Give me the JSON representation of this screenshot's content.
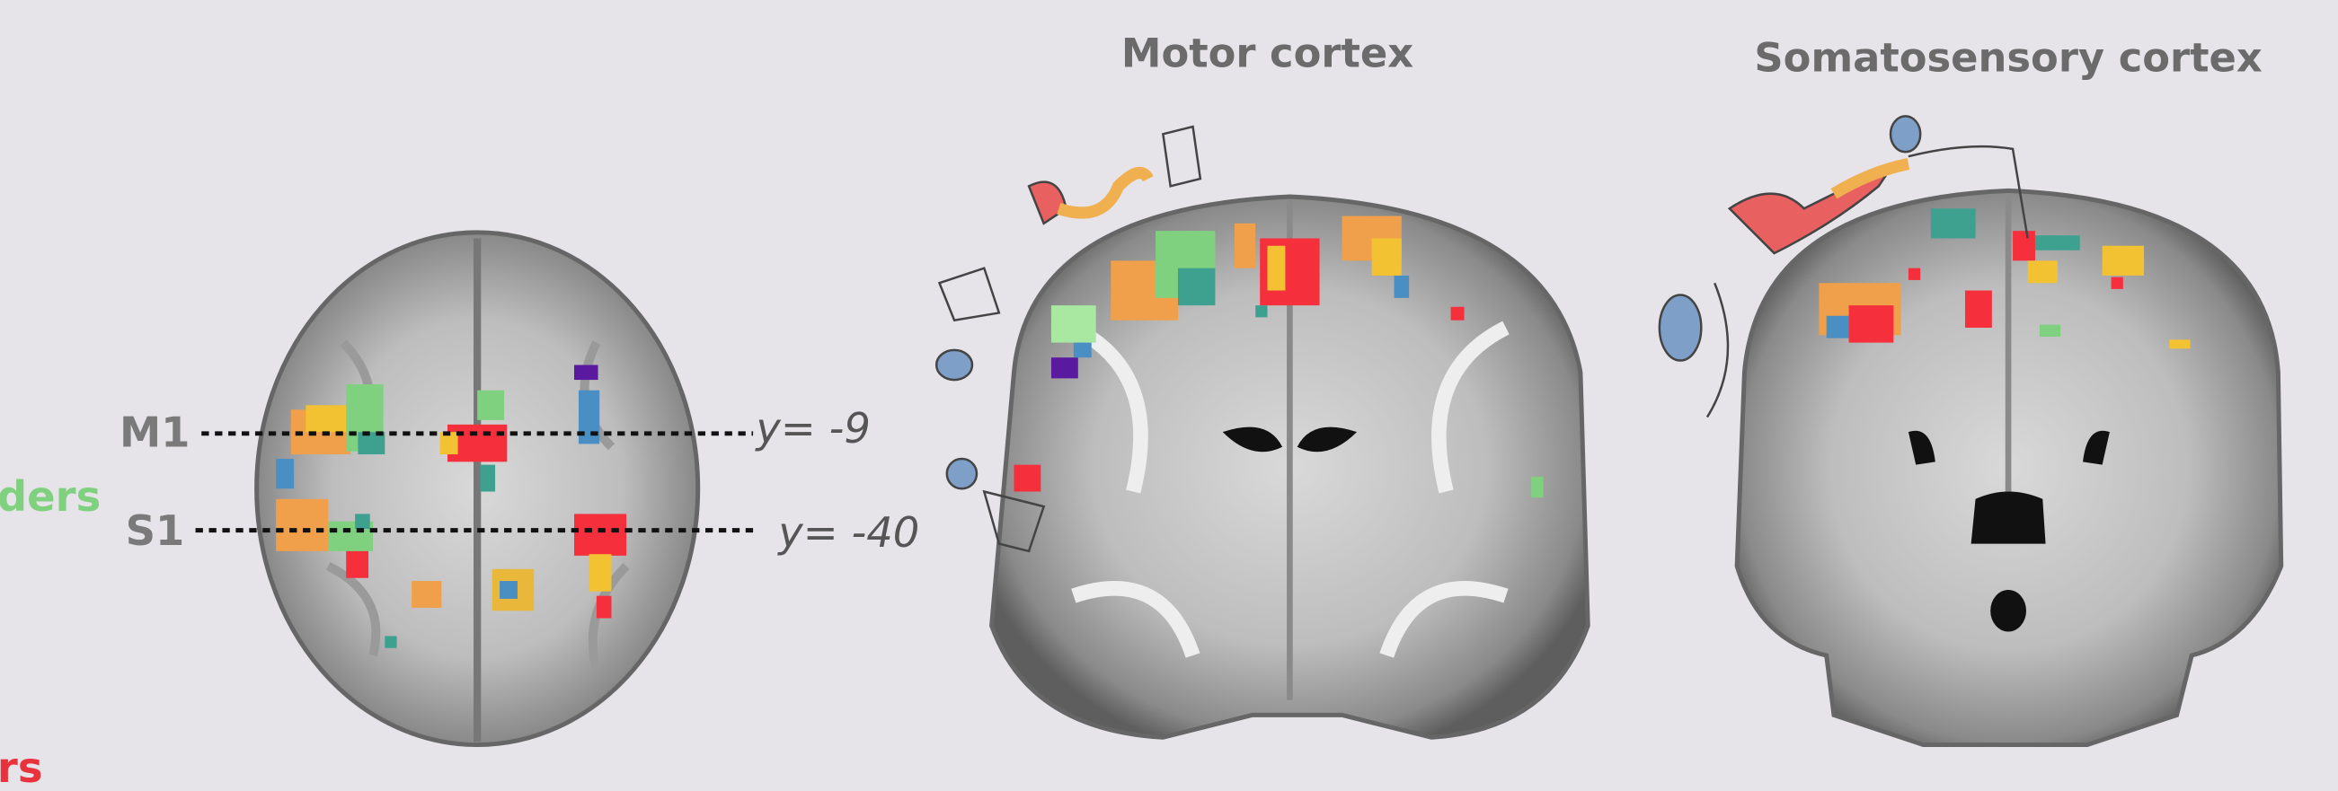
{
  "titles": {
    "motor": "Motor cortex",
    "somatosensory": "Somatosensory cortex"
  },
  "axial": {
    "m1": "M1",
    "s1": "S1",
    "m1_coord": "y= -9",
    "s1_coord": "y= -40"
  },
  "legend": {
    "green": "ders",
    "red": "rs"
  }
}
